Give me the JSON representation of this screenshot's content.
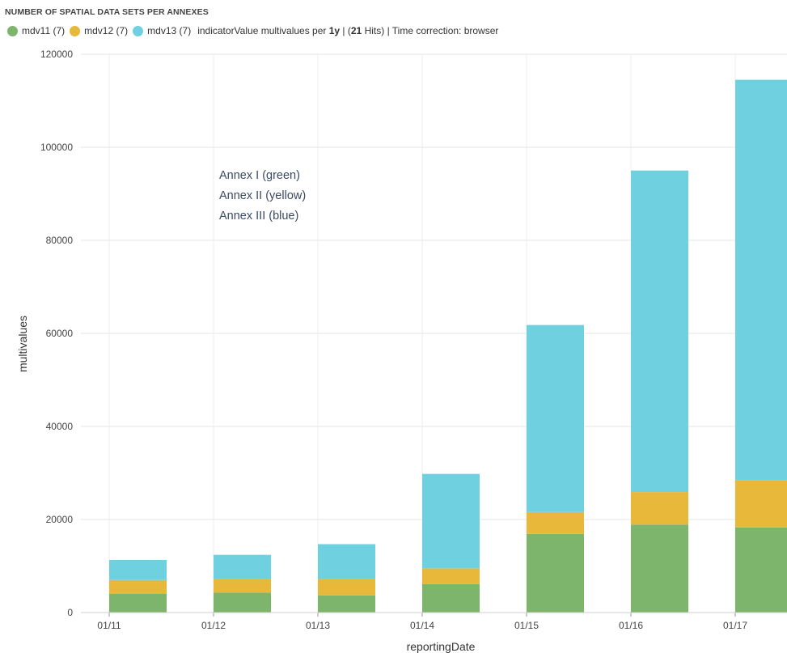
{
  "title": "NUMBER OF SPATIAL DATA SETS PER ANNEXES",
  "legend": {
    "items": [
      {
        "label": "mdv11 (7)",
        "color": "#7cb56b"
      },
      {
        "label": "mdv12 (7)",
        "color": "#e8b83b"
      },
      {
        "label": "mdv13 (7)",
        "color": "#6fd0e0"
      }
    ],
    "info_prefix": "indicatorValue multivalues per ",
    "interval": "1y",
    "hits_open": " | (",
    "hits_count": "21",
    "hits_close": " Hits) | Time correction: browser"
  },
  "annotations": [
    "Annex I (green)",
    "Annex II (yellow)",
    "Annex III (blue)"
  ],
  "chart_data": {
    "type": "bar",
    "stacked": true,
    "categories": [
      "01/11",
      "01/12",
      "01/13",
      "01/14",
      "01/15",
      "01/16",
      "01/17"
    ],
    "series": [
      {
        "name": "mdv11",
        "color": "#7cb56b",
        "values": [
          4000,
          4300,
          3700,
          6100,
          16900,
          18900,
          18300
        ]
      },
      {
        "name": "mdv12",
        "color": "#e8b83b",
        "values": [
          3000,
          2900,
          3500,
          3400,
          4700,
          7000,
          10200
        ]
      },
      {
        "name": "mdv13",
        "color": "#6fd0e0",
        "values": [
          4300,
          5200,
          7500,
          20300,
          40200,
          69100,
          86000
        ]
      }
    ],
    "xlabel": "reportingDate",
    "ylabel": "multivalues",
    "ylim": [
      0,
      120000
    ],
    "yticks": [
      0,
      20000,
      40000,
      60000,
      80000,
      100000,
      120000
    ],
    "grid": true
  }
}
